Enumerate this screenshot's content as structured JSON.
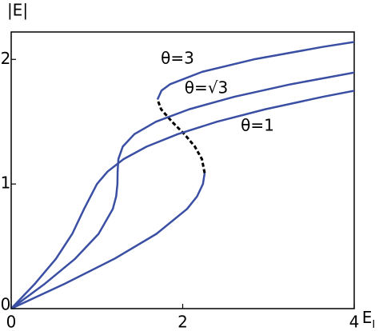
{
  "chart_data": {
    "type": "line",
    "ylabel": "|E|",
    "xlabel": "E",
    "xlabel_subscript": "I",
    "xlim": [
      0,
      4
    ],
    "ylim": [
      0,
      2.22
    ],
    "xticks": [
      0,
      2,
      4
    ],
    "yticks": [
      0,
      1,
      2
    ],
    "grid": false,
    "series": [
      {
        "name": "θ=3",
        "color": "#3a4fa3",
        "x": [
          0,
          0.625,
          1.204,
          1.694,
          2.051,
          2.167,
          2.236,
          2.256,
          null,
          1.706,
          1.753,
          1.851,
          2.226,
          2.828,
          3.63,
          4.001
        ],
        "values": [
          0,
          0.2,
          0.4,
          0.6,
          0.8,
          0.9,
          1.0,
          1.088,
          null,
          1.678,
          1.75,
          1.8,
          1.9,
          2.0,
          2.1,
          2.14
        ]
      },
      {
        "color": "#000000",
        "dashed": true,
        "x": [
          2.256,
          2.224,
          2.142,
          2.02,
          1.875,
          1.748,
          1.706
        ],
        "values": [
          1.088,
          1.2,
          1.3,
          1.4,
          1.5,
          1.6,
          1.678
        ]
      },
      {
        "name": "θ=√3",
        "color": "#3a4fa3",
        "x": [
          0,
          0.393,
          0.745,
          1.019,
          1.185,
          1.224,
          1.239,
          1.241,
          1.25,
          1.301,
          1.436,
          1.689,
          2.077,
          2.601,
          3.257,
          4.043
        ],
        "values": [
          0,
          0.2,
          0.4,
          0.6,
          0.8,
          0.9,
          1.0,
          1.1,
          1.2,
          1.3,
          1.4,
          1.5,
          1.6,
          1.7,
          1.8,
          1.9
        ]
      },
      {
        "name": "θ=1",
        "color": "#3a4fa3",
        "x": [
          0,
          0.277,
          0.522,
          0.712,
          0.85,
          1.0,
          1.124,
          1.311,
          1.579,
          1.941,
          2.401,
          2.965,
          3.635,
          4.011
        ],
        "values": [
          0,
          0.2,
          0.4,
          0.6,
          0.8,
          1.0,
          1.1,
          1.2,
          1.3,
          1.4,
          1.5,
          1.6,
          1.7,
          1.75
        ]
      }
    ]
  }
}
